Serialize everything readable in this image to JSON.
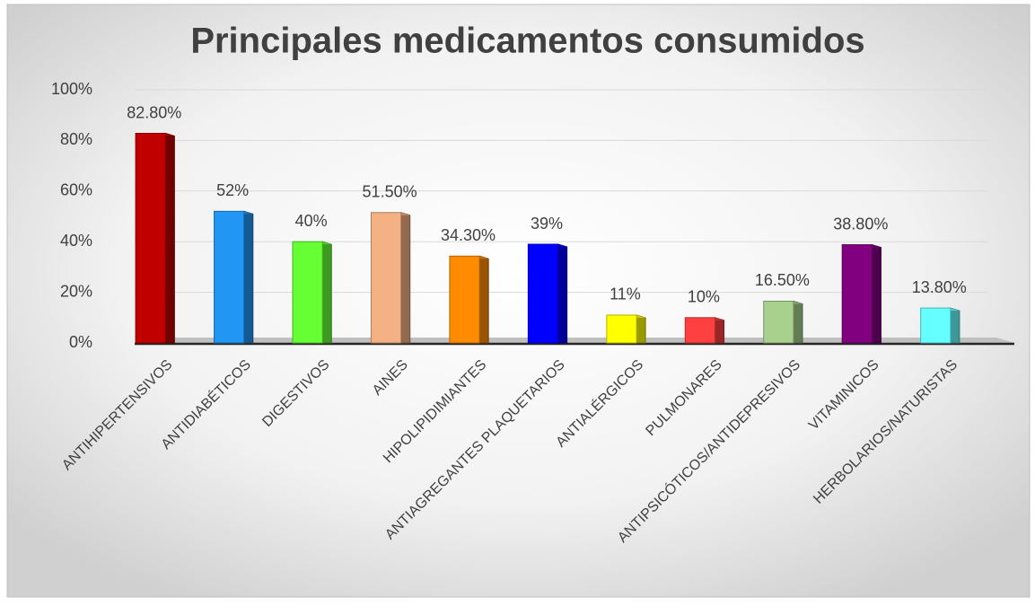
{
  "chart_data": {
    "type": "bar",
    "title": "Principales medicamentos consumidos",
    "categories": [
      "ANTIHIPERTENSIVOS",
      "ANTIDIABÉTICOS",
      "DIGESTIVOS",
      "AINES",
      "HIPOLIPIDIMIANTES",
      "ANTIAGREGANTES PLAQUETARIOS",
      "ANTIALÉRGICOS",
      "PULMONARES",
      "ANTIPSICÓTICOS/ANTIDEPRESIVOS",
      "VITAMINICOS",
      "HERBOLARIOS/NATURISTAS"
    ],
    "values": [
      82.8,
      52,
      40,
      51.5,
      34.3,
      39,
      11,
      10,
      16.5,
      38.8,
      13.8
    ],
    "value_labels": [
      "82.80%",
      "52%",
      "40%",
      "51.50%",
      "34.30%",
      "39%",
      "11%",
      "10%",
      "16.50%",
      "38.80%",
      "13.80%"
    ],
    "colors": [
      "#c00000",
      "#2196f3",
      "#66ff33",
      "#f4b183",
      "#ff8c00",
      "#0000ff",
      "#ffff00",
      "#ff4040",
      "#a9d18e",
      "#800080",
      "#66ffff"
    ],
    "ylim": [
      0,
      100
    ],
    "yticks": [
      {
        "value": 0,
        "label": "0%"
      },
      {
        "value": 20,
        "label": "20%"
      },
      {
        "value": 40,
        "label": "40%"
      },
      {
        "value": 60,
        "label": "60%"
      },
      {
        "value": 80,
        "label": "80%"
      },
      {
        "value": 100,
        "label": "100%"
      }
    ],
    "grid": true
  }
}
